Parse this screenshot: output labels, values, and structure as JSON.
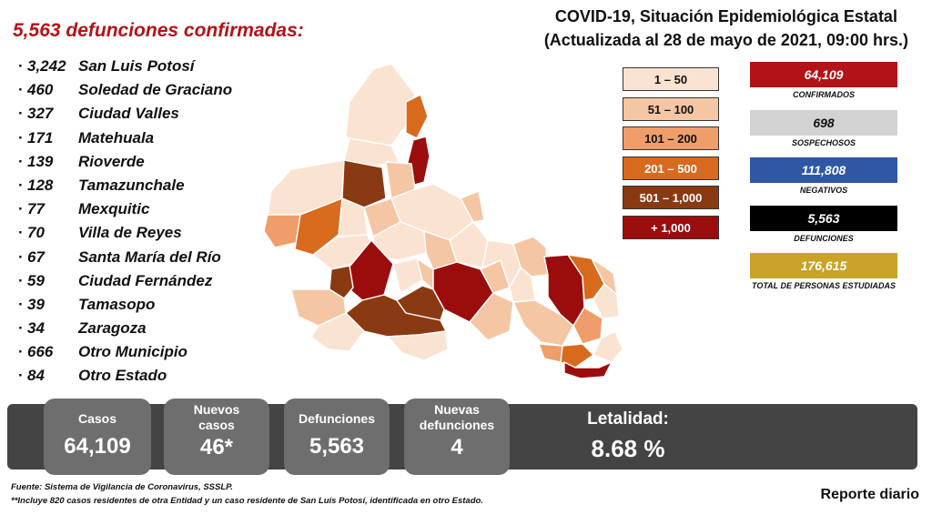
{
  "headline": "5,563 defunciones confirmadas:",
  "title": {
    "line1": "COVID-19, Situación Epidemiológica Estatal",
    "line2": "(Actualizada al 28 de mayo de 2021, 09:00 hrs.)"
  },
  "municipalities": [
    {
      "count": "3,242",
      "name": "San Luis Potosí"
    },
    {
      "count": "460",
      "name": "Soledad de Graciano"
    },
    {
      "count": "327",
      "name": "Ciudad Valles"
    },
    {
      "count": "171",
      "name": "Matehuala"
    },
    {
      "count": "139",
      "name": "Rioverde"
    },
    {
      "count": "128",
      "name": "Tamazunchale"
    },
    {
      "count": "77",
      "name": "Mexquitic"
    },
    {
      "count": "70",
      "name": "Villa de Reyes"
    },
    {
      "count": "67",
      "name": "Santa María del Río"
    },
    {
      "count": "59",
      "name": "Ciudad Fernández"
    },
    {
      "count": "39",
      "name": "Tamasopo"
    },
    {
      "count": "34",
      "name": "Zaragoza"
    },
    {
      "count": "666",
      "name": "Otro Municipio"
    },
    {
      "count": "84",
      "name": "Otro Estado"
    }
  ],
  "legend": [
    {
      "label": "1 – 50",
      "color": "#fbe3d2",
      "text_color": "#111111"
    },
    {
      "label": "51 – 100",
      "color": "#f5c6a3",
      "text_color": "#111111"
    },
    {
      "label": "101 – 200",
      "color": "#ef9d6a",
      "text_color": "#111111"
    },
    {
      "label": "201 – 500",
      "color": "#d86a1e",
      "text_color": "#ffffff"
    },
    {
      "label": "501 – 1,000",
      "color": "#8a3a12",
      "text_color": "#ffffff"
    },
    {
      "label": "+ 1,000",
      "color": "#9b0d0d",
      "text_color": "#ffffff"
    }
  ],
  "stats": [
    {
      "value": "64,109",
      "label": "CONFIRMADOS",
      "color": "#b31217",
      "text_color": "#ffffff"
    },
    {
      "value": "698",
      "label": "SOSPECHOSOS",
      "color": "#d2d2d2",
      "text_color": "#111111"
    },
    {
      "value": "111,808",
      "label": "NEGATIVOS",
      "color": "#2f57a4",
      "text_color": "#ffffff"
    },
    {
      "value": "5,563",
      "label": "DEFUNCIONES",
      "color": "#000000",
      "text_color": "#ffffff"
    },
    {
      "value": "176,615",
      "label": "TOTAL DE PERSONAS ESTUDIADAS",
      "color": "#c9a227",
      "text_color": "#ffffff"
    }
  ],
  "summary": {
    "casos": {
      "label": "Casos",
      "value": "64,109"
    },
    "nuevos_casos": {
      "label_line1": "Nuevos",
      "label_line2": "casos",
      "value": "46*"
    },
    "defunciones": {
      "label": "Defunciones",
      "value": "5,563"
    },
    "nuevas_defunciones": {
      "label_line1": "Nuevas",
      "label_line2": "defunciones",
      "value": "4"
    },
    "letalidad": {
      "label": "Letalidad:",
      "value": "8.68 %"
    }
  },
  "footnotes": {
    "source": "Fuente: Sistema de Vigilancia de Coronavirus, SSSLP.",
    "note": "**Incluye 820 casos residentes de otra Entidad y un caso residente de San Luis Potosí, identificada en otro Estado."
  },
  "report_label": "Reporte diario"
}
